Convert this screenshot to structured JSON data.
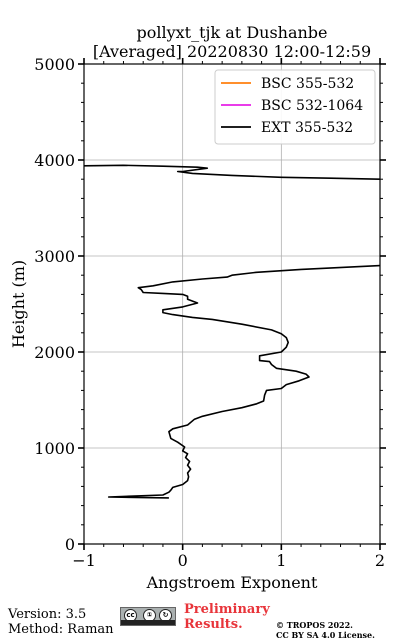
{
  "chart_data": {
    "type": "line",
    "title_line1": "pollyxt_tjk at Dushanbe",
    "title_line2": "[Averaged] 20220830 12:00-12:59",
    "xlabel": "Angstroem Exponent",
    "ylabel": "Height (m)",
    "xlim": [
      -1,
      2
    ],
    "ylim": [
      0,
      5000
    ],
    "xticks": [
      -1,
      0,
      1,
      2
    ],
    "xtick_labels": [
      "−1",
      "0",
      "1",
      "2"
    ],
    "yticks": [
      0,
      1000,
      2000,
      3000,
      4000,
      5000
    ],
    "ytick_labels": [
      "0",
      "1000",
      "2000",
      "3000",
      "4000",
      "5000"
    ],
    "grid": true,
    "legend_position": "top-right",
    "series": [
      {
        "name": "BSC 355-532",
        "color": "#ff7f0e",
        "points": []
      },
      {
        "name": "BSC 532-1064",
        "color": "#e620e6",
        "points": []
      },
      {
        "name": "EXT 355-532",
        "color": "#000000",
        "points": [
          [
            -0.14,
            480
          ],
          [
            -0.75,
            490
          ],
          [
            -0.2,
            510
          ],
          [
            -0.14,
            540
          ],
          [
            -0.12,
            560
          ],
          [
            -0.1,
            590
          ],
          [
            0.0,
            620
          ],
          [
            0.05,
            660
          ],
          [
            0.06,
            700
          ],
          [
            0.05,
            740
          ],
          [
            0.08,
            780
          ],
          [
            0.05,
            820
          ],
          [
            0.07,
            860
          ],
          [
            0.03,
            900
          ],
          [
            0.05,
            940
          ],
          [
            0.0,
            970
          ],
          [
            0.02,
            1010
          ],
          [
            -0.05,
            1060
          ],
          [
            -0.12,
            1100
          ],
          [
            -0.14,
            1170
          ],
          [
            -0.1,
            1200
          ],
          [
            0.05,
            1240
          ],
          [
            0.12,
            1300
          ],
          [
            0.2,
            1330
          ],
          [
            0.4,
            1380
          ],
          [
            0.6,
            1420
          ],
          [
            0.75,
            1460
          ],
          [
            0.82,
            1490
          ],
          [
            0.83,
            1550
          ],
          [
            0.85,
            1600
          ],
          [
            1.0,
            1620
          ],
          [
            1.05,
            1660
          ],
          [
            1.18,
            1700
          ],
          [
            1.28,
            1740
          ],
          [
            1.25,
            1770
          ],
          [
            1.15,
            1800
          ],
          [
            0.95,
            1830
          ],
          [
            0.9,
            1870
          ],
          [
            0.88,
            1900
          ],
          [
            0.78,
            1910
          ],
          [
            0.78,
            1960
          ],
          [
            1.0,
            2000
          ],
          [
            1.05,
            2050
          ],
          [
            1.07,
            2100
          ],
          [
            1.05,
            2150
          ],
          [
            1.0,
            2190
          ],
          [
            0.9,
            2230
          ],
          [
            0.6,
            2290
          ],
          [
            0.3,
            2340
          ],
          [
            0.1,
            2360
          ],
          [
            -0.1,
            2390
          ],
          [
            -0.2,
            2410
          ],
          [
            -0.2,
            2440
          ],
          [
            0.0,
            2470
          ],
          [
            0.15,
            2510
          ],
          [
            0.05,
            2550
          ],
          [
            0.05,
            2580
          ],
          [
            0.0,
            2600
          ],
          [
            -0.2,
            2610
          ],
          [
            -0.4,
            2620
          ],
          [
            -0.42,
            2650
          ],
          [
            -0.45,
            2670
          ],
          [
            -0.3,
            2690
          ],
          [
            -0.1,
            2730
          ],
          [
            0.2,
            2760
          ],
          [
            0.45,
            2780
          ],
          [
            0.5,
            2800
          ],
          [
            0.75,
            2830
          ],
          [
            1.2,
            2860
          ],
          [
            2.0,
            2900
          ]
        ]
      },
      {
        "name": "",
        "color": "#000000",
        "points": [
          [
            -1.0,
            3940
          ],
          [
            -0.6,
            3945
          ],
          [
            -0.2,
            3935
          ],
          [
            0.15,
            3925
          ],
          [
            0.25,
            3915
          ],
          [
            0.0,
            3880
          ],
          [
            -0.05,
            3880
          ],
          [
            0.1,
            3860
          ],
          [
            0.5,
            3840
          ],
          [
            1.0,
            3820
          ],
          [
            1.5,
            3810
          ],
          [
            2.0,
            3800
          ]
        ]
      }
    ]
  },
  "footer": {
    "version": "Version: 3.5",
    "method": "Method: Raman",
    "preliminary_line1": "Preliminary",
    "preliminary_line2": "Results.",
    "copyright_line1": "© TROPOS 2022.",
    "copyright_line2": "CC BY SA 4.0 License.",
    "cc_badge": "cc",
    "by_badge": "①",
    "sa_badge": "↻"
  }
}
